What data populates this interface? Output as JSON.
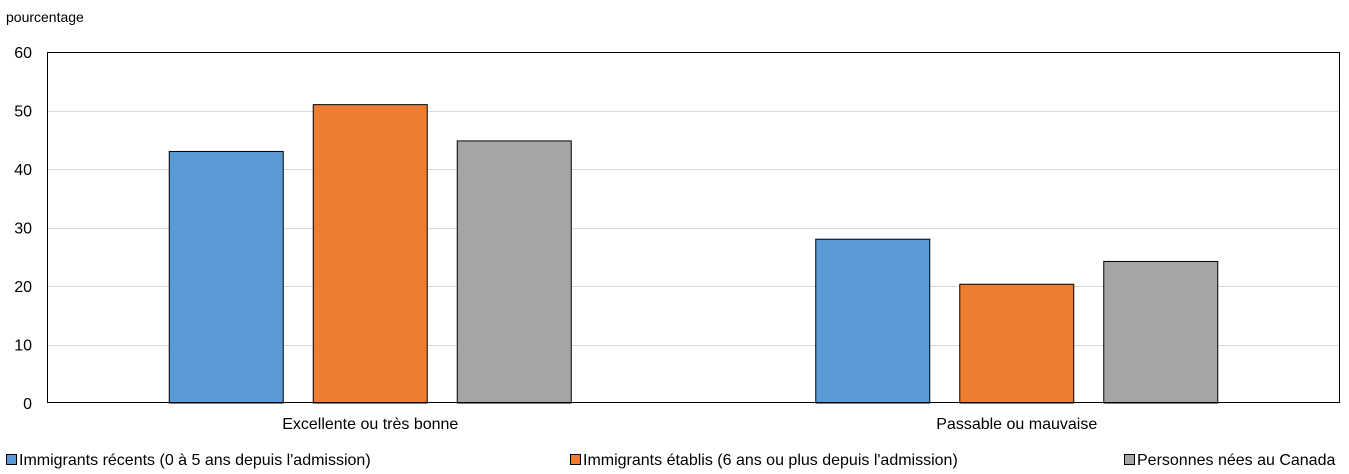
{
  "chart_data": {
    "type": "bar",
    "unit_label": "pourcentage",
    "title": "",
    "xlabel": "",
    "ylabel": "",
    "categories": [
      "Excellente ou très bonne",
      "Passable ou mauvaise"
    ],
    "ylim": [
      0,
      60
    ],
    "yticks": [
      0,
      10,
      20,
      30,
      40,
      50,
      60
    ],
    "grid": true,
    "legend_position": "bottom",
    "series": [
      {
        "name": "Immigrants récents (0 à 5 ans depuis l'admission)",
        "color": "#5B9BD5",
        "values": [
          43,
          28
        ]
      },
      {
        "name": "Immigrants établis (6 ans ou plus depuis l'admission)",
        "color": "#ED7D31",
        "values": [
          51,
          20.3
        ]
      },
      {
        "name": "Personnes nées au Canada",
        "color": "#A5A5A5",
        "values": [
          44.8,
          24.2
        ]
      }
    ]
  }
}
